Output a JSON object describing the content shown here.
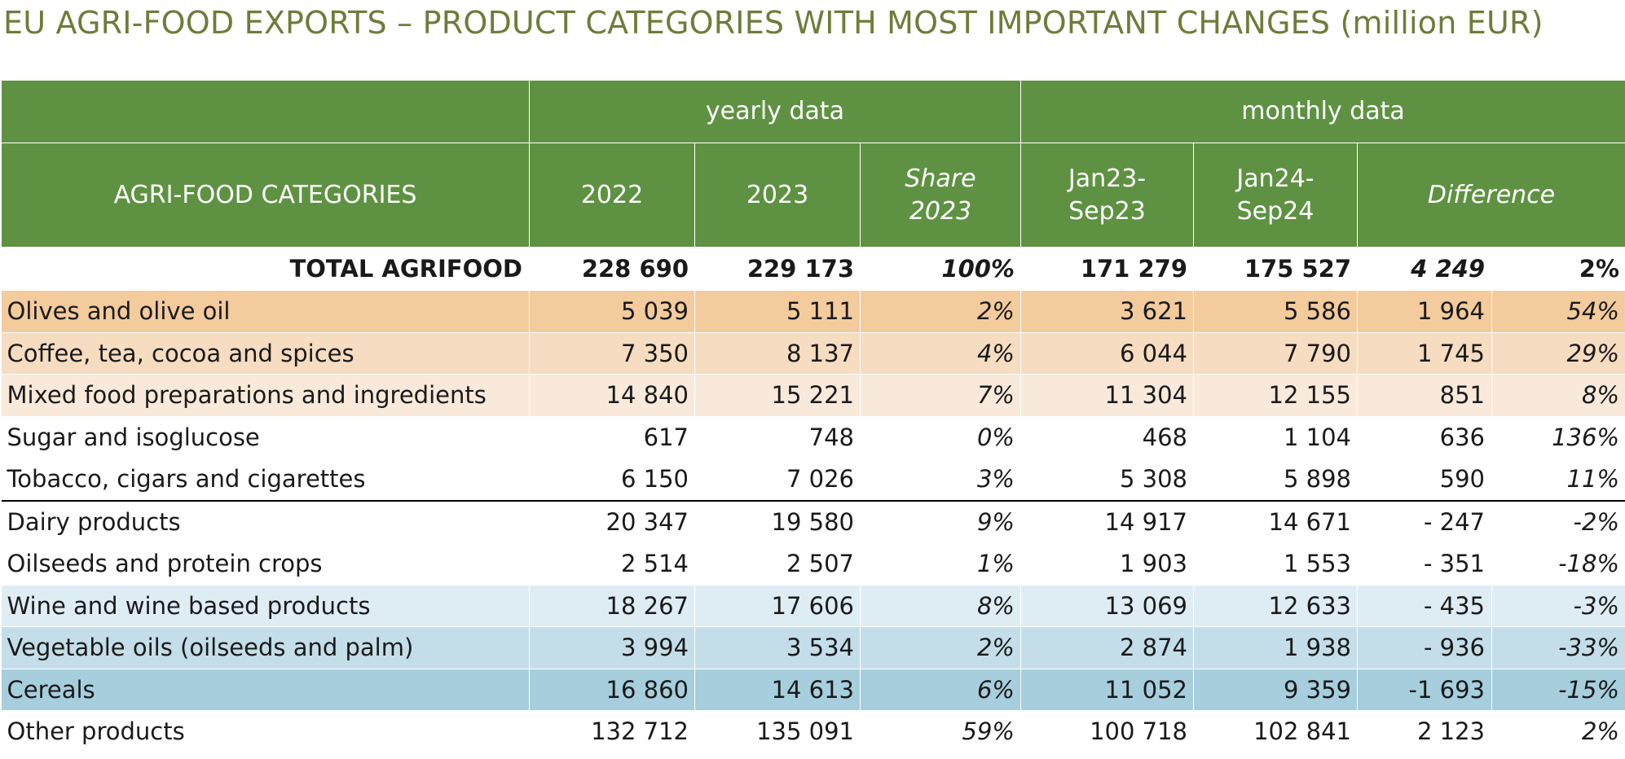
{
  "title": "EU AGRI-FOOD EXPORTS – PRODUCT CATEGORIES WITH MOST IMPORTANT CHANGES (million EUR)",
  "colors": {
    "title": "#6f7c3a",
    "header_bg": "#5e9242",
    "increase_strong": "#f3cb9c",
    "increase_medium": "#f6dcc0",
    "increase_light": "#f9e9da",
    "decrease_light": "#deedf3",
    "decrease_medium": "#c3dee8",
    "decrease_strong": "#a6cedd"
  },
  "header": {
    "group_yearly": "yearly data",
    "group_monthly": "monthly data",
    "categories": "AGRI-FOOD CATEGORIES",
    "y2022": "2022",
    "y2023": "2023",
    "share_1": "Share",
    "share_2": "2023",
    "m1_1": "Jan23-",
    "m1_2": "Sep23",
    "m2_1": "Jan24-",
    "m2_2": "Sep24",
    "difference": "Difference"
  },
  "total": {
    "label": "TOTAL AGRIFOOD",
    "v2022": "228 690",
    "v2023": "229 173",
    "share": "100%",
    "m1": "171 279",
    "m2": "175 527",
    "diff_abs": "4 249",
    "diff_pct": "2%"
  },
  "rows": [
    {
      "label": "Olives and olive oil",
      "v2022": "5 039",
      "v2023": "5 111",
      "share": "2%",
      "m1": "3 621",
      "m2": "5 586",
      "diff_abs": "1 964",
      "diff_pct": "54%"
    },
    {
      "label": "Coffee, tea, cocoa and spices",
      "v2022": "7 350",
      "v2023": "8 137",
      "share": "4%",
      "m1": "6 044",
      "m2": "7 790",
      "diff_abs": "1 745",
      "diff_pct": "29%"
    },
    {
      "label": "Mixed food preparations and ingredients",
      "v2022": "14 840",
      "v2023": "15 221",
      "share": "7%",
      "m1": "11 304",
      "m2": "12 155",
      "diff_abs": "851",
      "diff_pct": "8%"
    },
    {
      "label": "Sugar and isoglucose",
      "v2022": "617",
      "v2023": "748",
      "share": "0%",
      "m1": "468",
      "m2": "1 104",
      "diff_abs": "636",
      "diff_pct": "136%"
    },
    {
      "label": "Tobacco, cigars and cigarettes",
      "v2022": "6 150",
      "v2023": "7 026",
      "share": "3%",
      "m1": "5 308",
      "m2": "5 898",
      "diff_abs": "590",
      "diff_pct": "11%"
    },
    {
      "label": "Dairy products",
      "v2022": "20 347",
      "v2023": "19 580",
      "share": "9%",
      "m1": "14 917",
      "m2": "14 671",
      "diff_abs": "- 247",
      "diff_pct": "-2%"
    },
    {
      "label": "Oilseeds and protein crops",
      "v2022": "2 514",
      "v2023": "2 507",
      "share": "1%",
      "m1": "1 903",
      "m2": "1 553",
      "diff_abs": "- 351",
      "diff_pct": "-18%"
    },
    {
      "label": "Wine and wine based products",
      "v2022": "18 267",
      "v2023": "17 606",
      "share": "8%",
      "m1": "13 069",
      "m2": "12 633",
      "diff_abs": "- 435",
      "diff_pct": "-3%"
    },
    {
      "label": "Vegetable oils (oilseeds and palm)",
      "v2022": "3 994",
      "v2023": "3 534",
      "share": "2%",
      "m1": "2 874",
      "m2": "1 938",
      "diff_abs": "- 936",
      "diff_pct": "-33%"
    },
    {
      "label": "Cereals",
      "v2022": "16 860",
      "v2023": "14 613",
      "share": "6%",
      "m1": "11 052",
      "m2": "9 359",
      "diff_abs": "-1 693",
      "diff_pct": "-15%"
    },
    {
      "label": "Other products",
      "v2022": "132 712",
      "v2023": "135 091",
      "share": "59%",
      "m1": "100 718",
      "m2": "102 841",
      "diff_abs": "2 123",
      "diff_pct": "2%"
    }
  ]
}
